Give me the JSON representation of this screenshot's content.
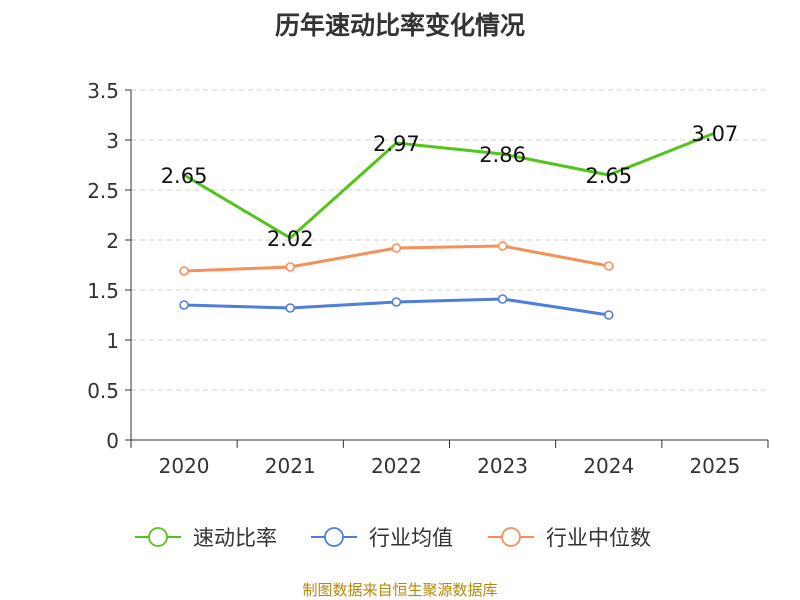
{
  "chart_data": {
    "type": "line",
    "title": "历年速动比率变化情况",
    "categories": [
      "2020",
      "2021",
      "2022",
      "2023",
      "2024",
      "2025"
    ],
    "ylim": [
      0,
      3.5
    ],
    "yticks": [
      "0",
      "0.5",
      "1",
      "1.5",
      "2",
      "2.5",
      "3",
      "3.5"
    ],
    "grid": true,
    "legend_position": "bottom",
    "series": [
      {
        "name": "速动比率",
        "color": "#52c41a",
        "values": [
          2.65,
          2.02,
          2.97,
          2.86,
          2.65,
          3.07
        ],
        "labels": [
          "2.65",
          "2.02",
          "2.97",
          "2.86",
          "2.65",
          "3.07"
        ],
        "markers": false
      },
      {
        "name": "行业均值",
        "color": "#4f7fd8",
        "values": [
          1.35,
          1.32,
          1.38,
          1.41,
          1.25,
          null
        ],
        "markers": true
      },
      {
        "name": "行业中位数",
        "color": "#f5905a",
        "values": [
          1.69,
          1.73,
          1.92,
          1.94,
          1.74,
          null
        ],
        "markers": true
      }
    ]
  },
  "footer": {
    "source": "制图数据来自恒生聚源数据库"
  }
}
